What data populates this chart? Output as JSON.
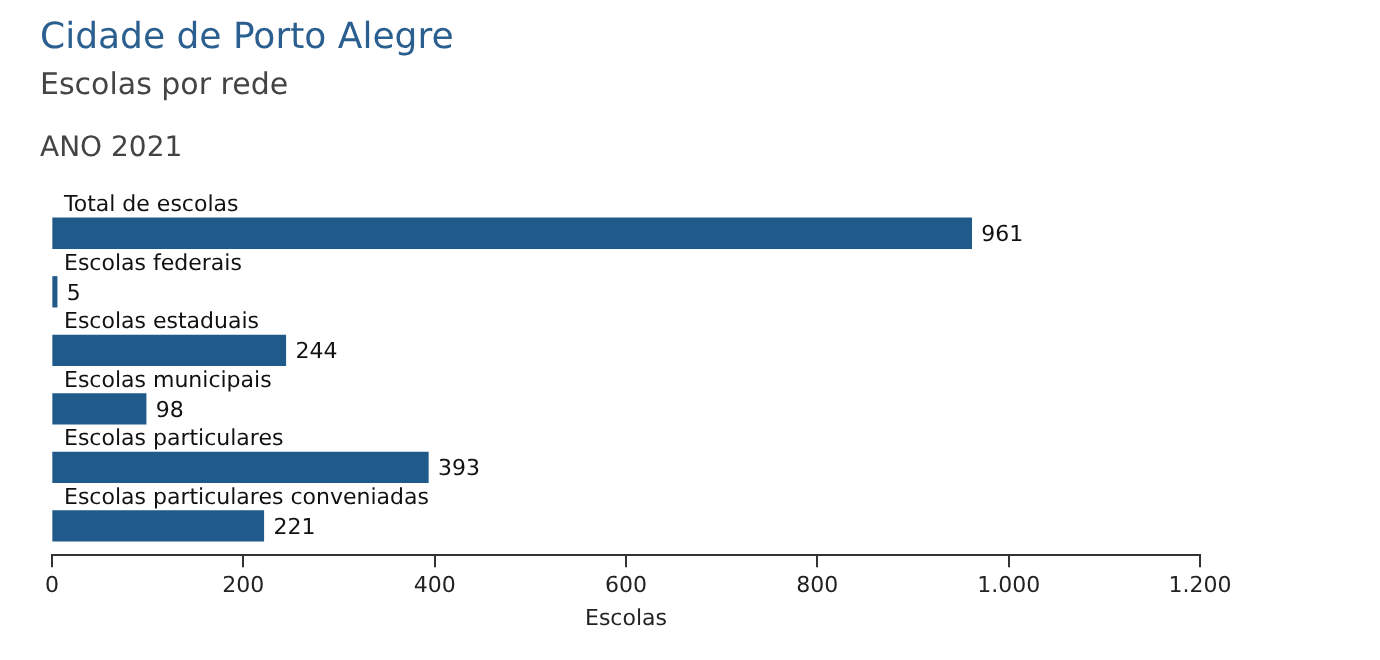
{
  "chart_data": {
    "type": "bar",
    "orientation": "horizontal",
    "title": "Cidade de Porto Alegre",
    "subtitle": "Escolas por rede",
    "annotations": [
      "ANO 2021"
    ],
    "xlabel": "Escolas",
    "categories": [
      "Total de escolas",
      "Escolas federais",
      "Escolas estaduais",
      "Escolas municipais",
      "Escolas particulares",
      "Escolas particulares conveniadas"
    ],
    "values": [
      961,
      5,
      244,
      98,
      393,
      221
    ],
    "color": "#1f5a8a",
    "xlim": [
      0,
      1200
    ],
    "xticks": [
      0,
      200,
      400,
      600,
      800,
      {
        "value": 1000,
        "label": "1.000"
      },
      {
        "value": 1200,
        "label": "1.200"
      }
    ],
    "grid": false,
    "legend": false,
    "data_labels": true
  }
}
